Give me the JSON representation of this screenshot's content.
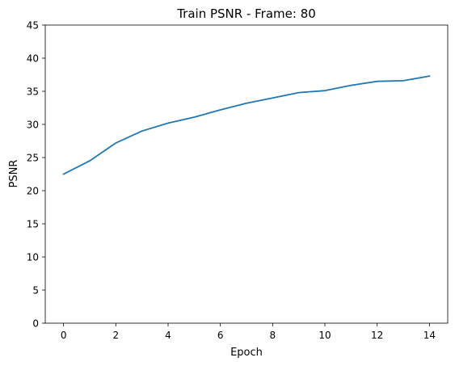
{
  "chart_data": {
    "type": "line",
    "title": "Train PSNR - Frame: 80",
    "xlabel": "Epoch",
    "ylabel": "PSNR",
    "xlim": [
      -0.7,
      14.7
    ],
    "ylim": [
      0,
      45
    ],
    "xticks": [
      0,
      2,
      4,
      6,
      8,
      10,
      12,
      14
    ],
    "yticks": [
      0,
      5,
      10,
      15,
      20,
      25,
      30,
      35,
      40,
      45
    ],
    "grid": false,
    "series": [
      {
        "color": "#1f77b4",
        "x": [
          0,
          1,
          2,
          3,
          4,
          5,
          6,
          7,
          8,
          9,
          10,
          11,
          12,
          13,
          14
        ],
        "y": [
          22.5,
          24.5,
          27.2,
          29.0,
          30.2,
          31.1,
          32.2,
          33.2,
          34.0,
          34.8,
          35.1,
          35.9,
          36.5,
          36.6,
          37.3
        ]
      }
    ]
  }
}
